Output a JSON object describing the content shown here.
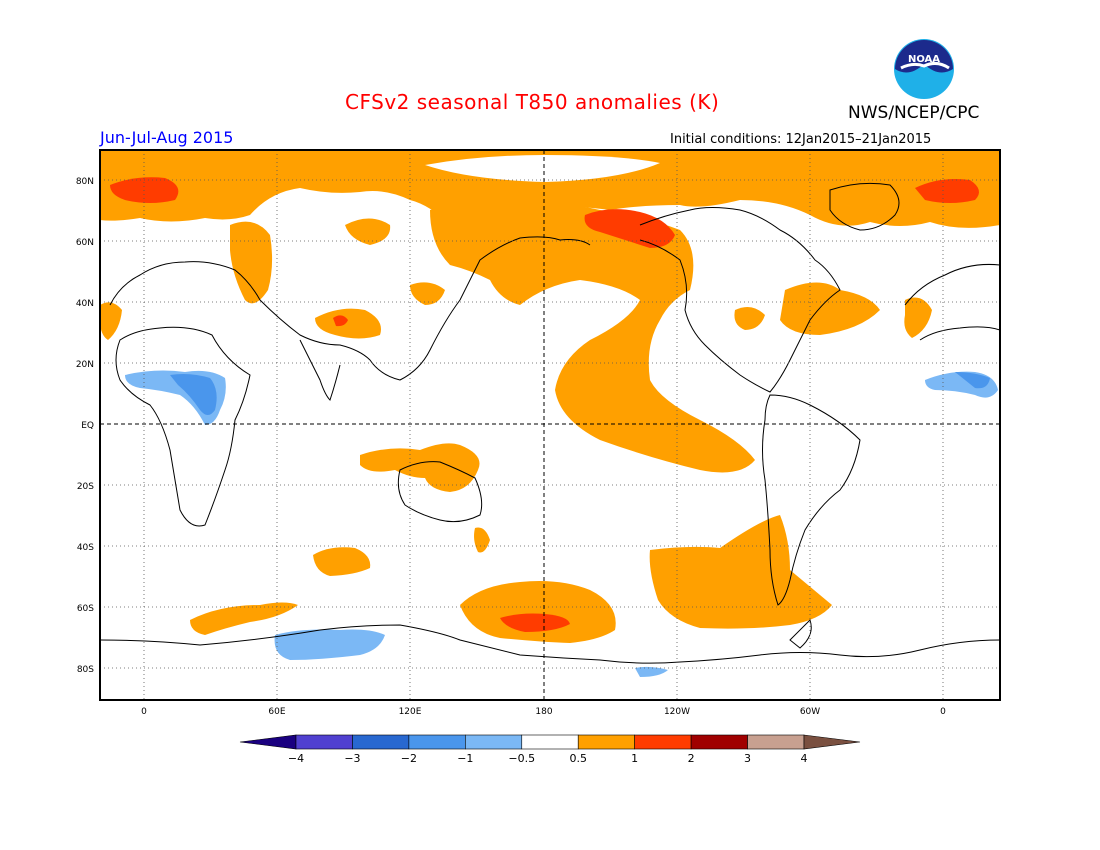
{
  "title": "CFSv2 seasonal T850 anomalies (K)",
  "period": "Jun-Jul-Aug 2015",
  "agency": "NWS/NCEP/CPC",
  "initial_conditions": "Initial conditions: 12Jan2015–21Jan2015",
  "logo_text": "NOAA",
  "lat_labels": [
    "80N",
    "60N",
    "40N",
    "20N",
    "EQ",
    "20S",
    "40S",
    "60S",
    "80S"
  ],
  "lon_labels": [
    "0",
    "60E",
    "120E",
    "180",
    "120W",
    "60W",
    "0"
  ],
  "colorbar": {
    "tick_labels": [
      "−4",
      "−3",
      "−2",
      "−1",
      "−0.5",
      "0.5",
      "1",
      "2",
      "3",
      "4"
    ],
    "colors": [
      "#1a0080",
      "#5040d0",
      "#2868d0",
      "#4a96ec",
      "#7bb8f5",
      "#ffffff",
      "#ffa000",
      "#ff3c00",
      "#a00000",
      "#c8a090",
      "#7a5040"
    ]
  }
}
